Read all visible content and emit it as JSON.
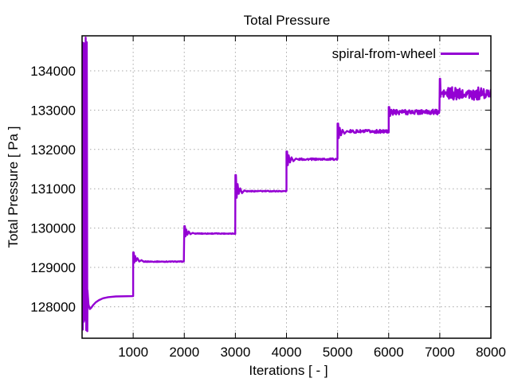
{
  "chart_data": {
    "type": "line",
    "title": "Total Pressure",
    "xlabel": "Iterations [ - ]",
    "ylabel": "Total Pressure [ Pa ]",
    "xlim": [
      0,
      8000
    ],
    "ylim": [
      127200,
      134890
    ],
    "xticks": [
      1000,
      2000,
      3000,
      4000,
      5000,
      6000,
      7000,
      8000
    ],
    "yticks": [
      128000,
      129000,
      130000,
      131000,
      132000,
      133000,
      134000
    ],
    "grid": true,
    "grid_style": "dotted",
    "grid_color": "#a8a8a8",
    "axis_color": "#000000",
    "background": "#ffffff",
    "legend": {
      "position": "top-right-inside",
      "entries": [
        "spiral-from-wheel"
      ]
    },
    "series": [
      {
        "name": "spiral-from-wheel",
        "color": "#9400d3",
        "line_width": 2.4,
        "plateaus": [
          {
            "x_range": [
              150,
              1000
            ],
            "value": 128270
          },
          {
            "x_range": [
              1000,
              2000
            ],
            "value": 129150
          },
          {
            "x_range": [
              2000,
              3000
            ],
            "value": 129860
          },
          {
            "x_range": [
              3000,
              4000
            ],
            "value": 130940
          },
          {
            "x_range": [
              4000,
              5000
            ],
            "value": 131750
          },
          {
            "x_range": [
              5000,
              6000
            ],
            "value": 132460
          },
          {
            "x_range": [
              6000,
              7000
            ],
            "value": 132950
          },
          {
            "x_range": [
              7000,
              8000
            ],
            "value": 133420
          }
        ],
        "segments": [
          {
            "type": "zigzag",
            "x0": 4,
            "x1": 106,
            "center": 131100,
            "amp": 3760,
            "dx": 11
          },
          {
            "type": "line",
            "pts": [
              [
                106,
                128420
              ],
              [
                125,
                128060
              ],
              [
                152,
                127940
              ],
              [
                180,
                127975
              ],
              [
                215,
                128040
              ],
              [
                265,
                128110
              ],
              [
                330,
                128170
              ],
              [
                410,
                128215
              ],
              [
                510,
                128245
              ],
              [
                660,
                128262
              ],
              [
                1000,
                128270
              ]
            ]
          },
          {
            "type": "line",
            "pts": [
              [
                1000,
                129380
              ],
              [
                1012,
                129380
              ],
              [
                1022,
                129120
              ],
              [
                1038,
                129290
              ],
              [
                1058,
                129165
              ],
              [
                1084,
                129235
              ],
              [
                1118,
                129150
              ],
              [
                1162,
                129185
              ],
              [
                1212,
                129140
              ]
            ]
          },
          {
            "type": "noise",
            "x0": 1212,
            "x1": 2000,
            "base": 129148,
            "amp": 10,
            "dx": 10
          },
          {
            "type": "line",
            "pts": [
              [
                2000,
                130050
              ],
              [
                2012,
                130050
              ],
              [
                2024,
                129790
              ],
              [
                2040,
                129960
              ],
              [
                2060,
                129830
              ],
              [
                2086,
                129915
              ],
              [
                2120,
                129845
              ],
              [
                2164,
                129880
              ],
              [
                2218,
                129855
              ]
            ]
          },
          {
            "type": "noise",
            "x0": 2218,
            "x1": 3000,
            "base": 129862,
            "amp": 10,
            "dx": 10
          },
          {
            "type": "line",
            "pts": [
              [
                3000,
                131350
              ],
              [
                3012,
                131350
              ],
              [
                3026,
                130770
              ],
              [
                3044,
                131120
              ],
              [
                3066,
                130870
              ],
              [
                3094,
                131010
              ],
              [
                3130,
                130890
              ],
              [
                3176,
                130960
              ],
              [
                3230,
                130928
              ]
            ]
          },
          {
            "type": "noise",
            "x0": 3230,
            "x1": 4000,
            "base": 130940,
            "amp": 12,
            "dx": 10
          },
          {
            "type": "line",
            "pts": [
              [
                4000,
                131950
              ],
              [
                4012,
                131950
              ],
              [
                4026,
                131600
              ],
              [
                4044,
                131850
              ],
              [
                4068,
                131670
              ],
              [
                4098,
                131800
              ],
              [
                4136,
                131700
              ],
              [
                4186,
                131770
              ],
              [
                4242,
                131738
              ]
            ]
          },
          {
            "type": "noise",
            "x0": 4242,
            "x1": 5000,
            "base": 131752,
            "amp": 22,
            "dx": 9
          },
          {
            "type": "line",
            "pts": [
              [
                5000,
                132660
              ],
              [
                5012,
                132660
              ],
              [
                5024,
                132290
              ],
              [
                5042,
                132550
              ],
              [
                5066,
                132360
              ],
              [
                5096,
                132500
              ],
              [
                5134,
                132400
              ],
              [
                5184,
                132470
              ],
              [
                5244,
                132436
              ]
            ]
          },
          {
            "type": "noise",
            "x0": 5244,
            "x1": 6000,
            "base": 132458,
            "amp": 40,
            "dx": 9
          },
          {
            "type": "line",
            "pts": [
              [
                6000,
                133080
              ],
              [
                6012,
                133080
              ],
              [
                6028,
                132850
              ],
              [
                6052,
                133010
              ],
              [
                6082,
                132880
              ]
            ]
          },
          {
            "type": "noise",
            "x0": 6082,
            "x1": 7000,
            "base": 132952,
            "amp": 62,
            "dx": 8
          },
          {
            "type": "line",
            "pts": [
              [
                7000,
                133800
              ],
              [
                7008,
                133800
              ],
              [
                7018,
                133340
              ]
            ]
          },
          {
            "type": "noise",
            "x0": 7018,
            "x1": 8000,
            "base": 133420,
            "amp": 165,
            "dx": 7,
            "mod": 150
          }
        ]
      }
    ]
  }
}
